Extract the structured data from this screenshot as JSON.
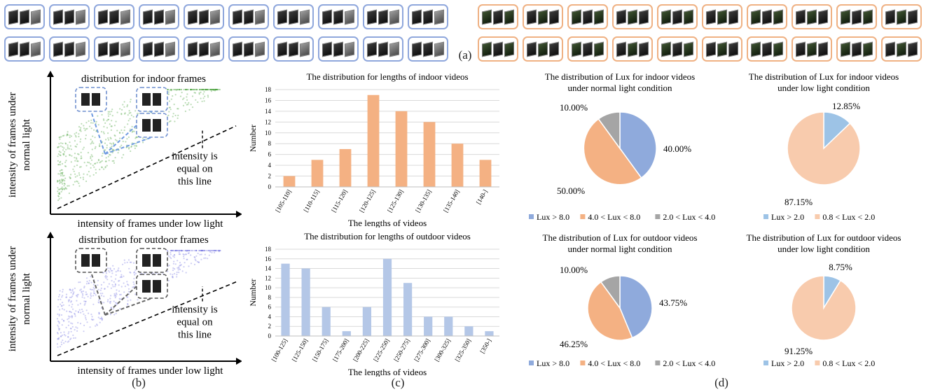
{
  "captions": {
    "a": "(a)",
    "b": "(b)",
    "c": "(c)",
    "d": "(d)"
  },
  "colors": {
    "indoor_border": "#8fa7dc",
    "outdoor_border": "#efb183",
    "bar_indoor": "#f4b183",
    "bar_outdoor": "#b4c7e7",
    "pie_blue": "#8faadc",
    "pie_orange": "#f4b183",
    "pie_gray": "#a5a5a5",
    "pie_lightblue": "#9dc3e6",
    "pie_peach": "#f8cbad"
  },
  "scatter": [
    {
      "title": "distribution for indoor frames",
      "ylabel": "intensity of frames under normal light",
      "xlabel": "intensity of frames under low light",
      "note": "intensity is equal on this line",
      "color": "#3c9a2e"
    },
    {
      "title": "distribution for outdoor frames",
      "ylabel": "intensity of frames under normal light",
      "xlabel": "intensity of frames under low light",
      "note": "intensity is equal on this line",
      "color": "#6f6fe0"
    }
  ],
  "chart_data": [
    {
      "type": "bar",
      "title": "The distribution for lengths of indoor videos",
      "xlabel": "The lengths of videos",
      "ylabel": "Number",
      "ylim": [
        0,
        18
      ],
      "yticks": [
        0,
        2,
        4,
        6,
        8,
        10,
        12,
        14,
        16,
        18
      ],
      "grid": true,
      "categories": [
        "[105-110]",
        "[110-115]",
        "[115-120]",
        "[120-125]",
        "[125-130]",
        "[130-135]",
        "[135-140]",
        "[140-]"
      ],
      "values": [
        2,
        5,
        7,
        17,
        14,
        12,
        8,
        5
      ]
    },
    {
      "type": "bar",
      "title": "The distribution for lengths of outdoor videos",
      "xlabel": "The lengths of videos",
      "ylabel": "Number",
      "ylim": [
        0,
        18
      ],
      "yticks": [
        0,
        2,
        4,
        6,
        8,
        10,
        12,
        14,
        16,
        18
      ],
      "grid": true,
      "categories": [
        "[100-125]",
        "[125-150]",
        "[150-175]",
        "[175-200]",
        "[200-225]",
        "[225-250]",
        "[250-275]",
        "[275-300]",
        "[300-325]",
        "[325-350]",
        "[350-]"
      ],
      "values": [
        15,
        14,
        6,
        1,
        6,
        16,
        11,
        4,
        4,
        2,
        1
      ]
    },
    {
      "type": "pie",
      "title": "The distribution of Lux for indoor videos under normal light condition",
      "labels": [
        "Lux > 8.0",
        "4.0 < Lux < 8.0",
        "2.0 < Lux < 4.0"
      ],
      "values": [
        40.0,
        50.0,
        10.0
      ],
      "value_labels": [
        "40.00%",
        "50.00%",
        "10.00%"
      ],
      "colors": [
        "#8faadc",
        "#f4b183",
        "#a5a5a5"
      ],
      "legend": "bottom"
    },
    {
      "type": "pie",
      "title": "The distribution of Lux for indoor videos under low light condition",
      "labels": [
        "Lux > 2.0",
        "0.8 < Lux < 2.0"
      ],
      "values": [
        12.85,
        87.15
      ],
      "value_labels": [
        "12.85%",
        "87.15%"
      ],
      "colors": [
        "#9dc3e6",
        "#f8cbad"
      ],
      "legend": "bottom"
    },
    {
      "type": "pie",
      "title": "The distribution of Lux for outdoor videos under normal light condition",
      "labels": [
        "Lux > 8.0",
        "4.0 < Lux < 8.0",
        "2.0 < Lux < 4.0"
      ],
      "values": [
        43.75,
        46.25,
        10.0
      ],
      "value_labels": [
        "43.75%",
        "46.25%",
        "10.00%"
      ],
      "colors": [
        "#8faadc",
        "#f4b183",
        "#a5a5a5"
      ],
      "legend": "bottom"
    },
    {
      "type": "pie",
      "title": "The distribution of Lux for outdoor videos under low light condition",
      "labels": [
        "Lux > 2.0",
        "0.8 < Lux < 2.0"
      ],
      "values": [
        8.75,
        91.25
      ],
      "value_labels": [
        "8.75%",
        "91.25%"
      ],
      "colors": [
        "#9dc3e6",
        "#f8cbad"
      ],
      "legend": "bottom"
    }
  ]
}
